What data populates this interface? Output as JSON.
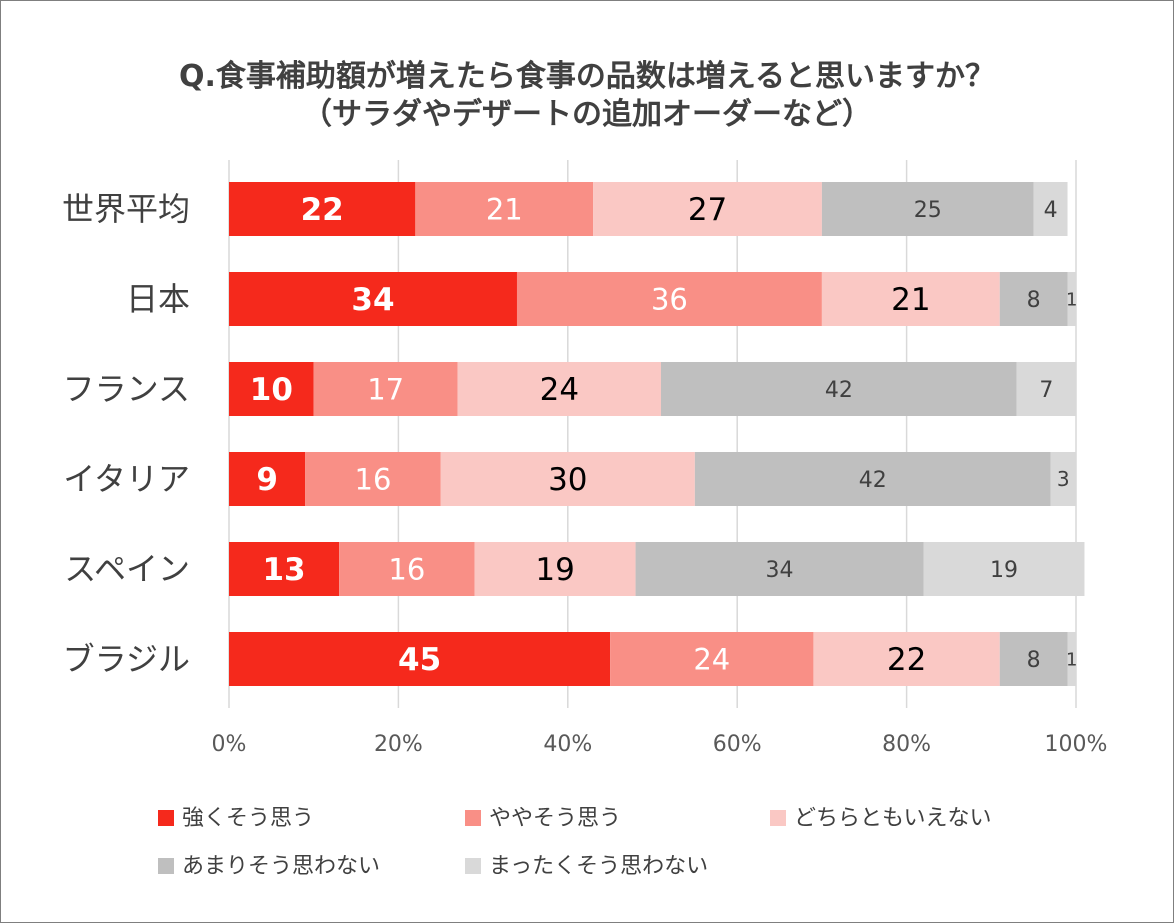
{
  "chart_data": {
    "type": "bar",
    "orientation": "horizontal",
    "stacked": true,
    "title": "Q.食事補助額が増えたら食事の品数は増えると思いますか？",
    "subtitle": "（サラダやデザートの追加オーダーなど）",
    "categories": [
      "世界平均",
      "日本",
      "フランス",
      "イタリア",
      "スペイン",
      "ブラジル"
    ],
    "series": [
      {
        "name": "強くそう思う",
        "color": "#f5291c",
        "label_color": "#ffffff",
        "label_bold": true,
        "values": [
          22,
          34,
          10,
          9,
          13,
          45
        ]
      },
      {
        "name": "ややそう思う",
        "color": "#f98f86",
        "label_color": "#ffffff",
        "label_bold": false,
        "values": [
          21,
          36,
          17,
          16,
          16,
          24
        ]
      },
      {
        "name": "どちらともいえない",
        "color": "#fac8c4",
        "label_color": "#000000",
        "label_bold": false,
        "values": [
          27,
          21,
          24,
          30,
          19,
          22
        ]
      },
      {
        "name": "あまりそう思わない",
        "color": "#bfbfbf",
        "label_color": "#404040",
        "label_bold": false,
        "values": [
          25,
          8,
          42,
          42,
          34,
          8
        ]
      },
      {
        "name": "まったくそう思わない",
        "color": "#d9d9d9",
        "label_color": "#404040",
        "label_bold": false,
        "values": [
          4,
          1,
          7,
          3,
          19,
          1
        ]
      }
    ],
    "xlim": [
      0,
      100
    ],
    "xticks": [
      "0%",
      "20%",
      "40%",
      "60%",
      "80%",
      "100%"
    ],
    "grid": true,
    "legend_position": "bottom"
  }
}
